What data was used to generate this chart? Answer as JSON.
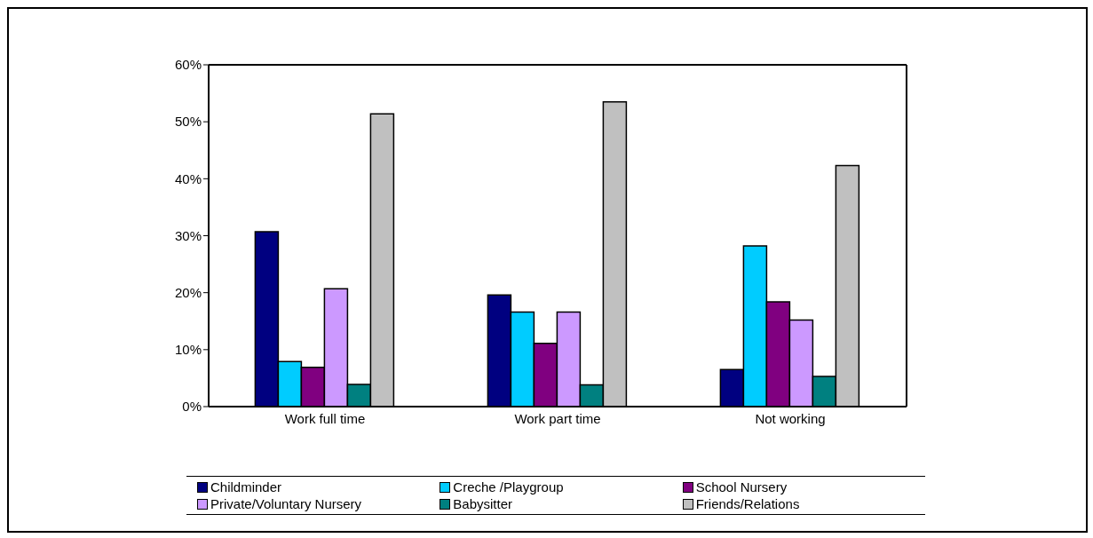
{
  "chart_data": {
    "type": "bar",
    "categories": [
      "Work full time",
      "Work part time",
      "Not working"
    ],
    "series": [
      {
        "name": "Childminder",
        "color": "#000080",
        "values": [
          30.7,
          19.6,
          6.5
        ]
      },
      {
        "name": "Creche /Playgroup",
        "color": "#00ccff",
        "values": [
          7.9,
          16.6,
          28.2
        ]
      },
      {
        "name": "School Nursery",
        "color": "#800080",
        "values": [
          6.9,
          11.1,
          18.4
        ]
      },
      {
        "name": "Private/Voluntary Nursery",
        "color": "#cc99ff",
        "values": [
          20.7,
          16.6,
          15.2
        ]
      },
      {
        "name": "Babysitter",
        "color": "#008080",
        "values": [
          3.9,
          3.8,
          5.3
        ]
      },
      {
        "name": "Friends/Relations",
        "color": "#c0c0c0",
        "values": [
          51.4,
          53.5,
          42.3
        ]
      }
    ],
    "ylim": [
      0,
      60
    ],
    "yticks": [
      {
        "value": 0,
        "label": "0%"
      },
      {
        "value": 10,
        "label": "10%"
      },
      {
        "value": 20,
        "label": "20%"
      },
      {
        "value": 30,
        "label": "30%"
      },
      {
        "value": 40,
        "label": "40%"
      },
      {
        "value": 50,
        "label": "50%"
      },
      {
        "value": 60,
        "label": "60%"
      }
    ],
    "grid": false,
    "legend": "bottom"
  }
}
